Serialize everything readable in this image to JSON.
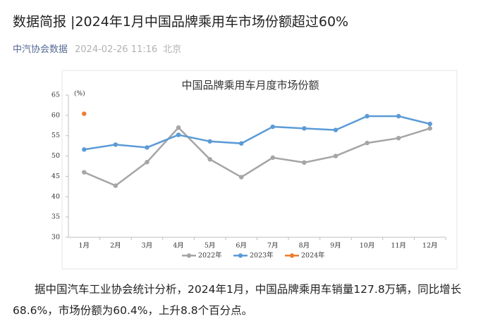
{
  "header": {
    "title": "数据简报 |2024年1月中国品牌乘用车市场份额超过60%",
    "source": "中汽协会数据",
    "time": "2024-02-26 11:16",
    "place": "北京"
  },
  "chart_data": {
    "type": "line",
    "title": "中国品牌乘用车月度市场份额",
    "y_unit": "(%)",
    "categories": [
      "1月",
      "2月",
      "3月",
      "4月",
      "5月",
      "6月",
      "7月",
      "8月",
      "9月",
      "10月",
      "11月",
      "12月"
    ],
    "series": [
      {
        "name": "2022年",
        "color": "#a5a5a5",
        "values": [
          46,
          42.7,
          48.5,
          57,
          49.2,
          44.8,
          49.6,
          48.4,
          50,
          53.2,
          54.4,
          56.8
        ]
      },
      {
        "name": "2023年",
        "color": "#5b9bd5",
        "values": [
          51.6,
          52.8,
          52.1,
          55.2,
          53.6,
          53.1,
          57.2,
          56.8,
          56.4,
          59.8,
          59.8,
          57.9
        ]
      },
      {
        "name": "2024年",
        "color": "#ed7d31",
        "values": [
          60.4,
          null,
          null,
          null,
          null,
          null,
          null,
          null,
          null,
          null,
          null,
          null
        ]
      }
    ],
    "ylim": [
      30,
      65
    ],
    "yticks": [
      30,
      35,
      40,
      45,
      50,
      55,
      60,
      65
    ],
    "grid": false,
    "legend": "bottom"
  },
  "body": {
    "paragraph": "据中国汽车工业协会统计分析，2024年1月，中国品牌乘用车销量127.8万辆，同比增长68.6%，市场份额为60.4%，上升8.8个百分点。"
  }
}
